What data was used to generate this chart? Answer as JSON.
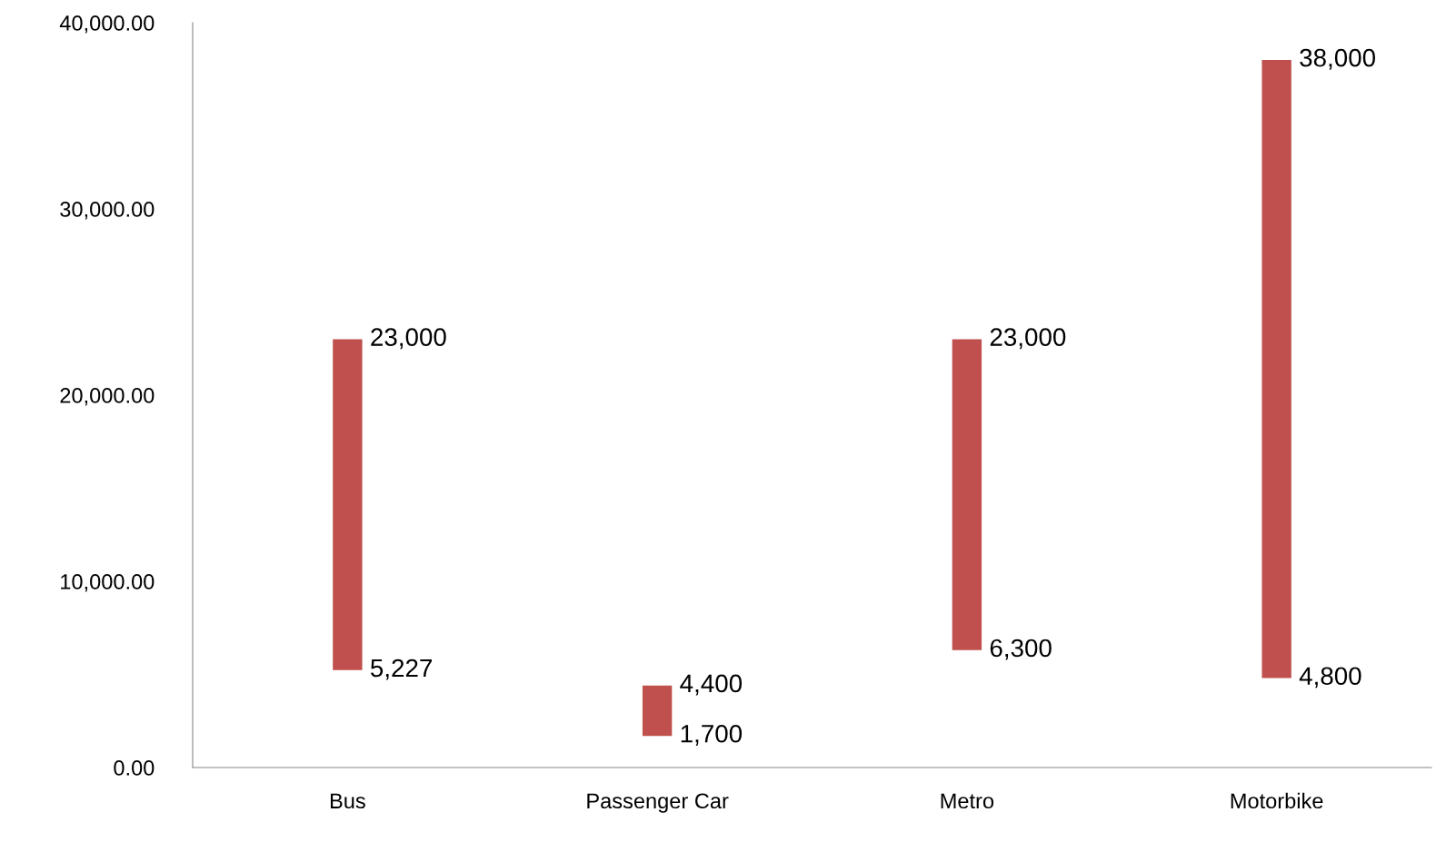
{
  "chart_data": {
    "type": "bar",
    "categories": [
      "Bus",
      "Passenger Car",
      "Metro",
      "Motorbike"
    ],
    "values": [
      17773,
      2700,
      16700,
      33200
    ],
    "base": [
      5227,
      1700,
      6300,
      4800
    ],
    "color": "#c0504d",
    "ylim": [
      0,
      40000
    ],
    "yticks": [
      {
        "value": 0,
        "label": "0.00"
      },
      {
        "value": 10000,
        "label": "10,000.00"
      },
      {
        "value": 20000,
        "label": "20,000.00"
      },
      {
        "value": 30000,
        "label": "30,000.00"
      },
      {
        "value": 40000,
        "label": "40,000.00"
      }
    ],
    "grid": false,
    "legend": false,
    "annotations": [
      {
        "text": "23,000",
        "x": "Bus",
        "y": 23000
      },
      {
        "text": "5,227",
        "x": "Bus",
        "y": 5227
      },
      {
        "text": "4,400",
        "x": "Passenger Car",
        "y": 4400
      },
      {
        "text": "1,700",
        "x": "Passenger Car",
        "y": 1700
      },
      {
        "text": "23,000",
        "x": "Metro",
        "y": 23000
      },
      {
        "text": "6,300",
        "x": "Metro",
        "y": 6300
      },
      {
        "text": "38,000",
        "x": "Motorbike",
        "y": 38000
      },
      {
        "text": "4,800",
        "x": "Motorbike",
        "y": 4800
      }
    ]
  }
}
